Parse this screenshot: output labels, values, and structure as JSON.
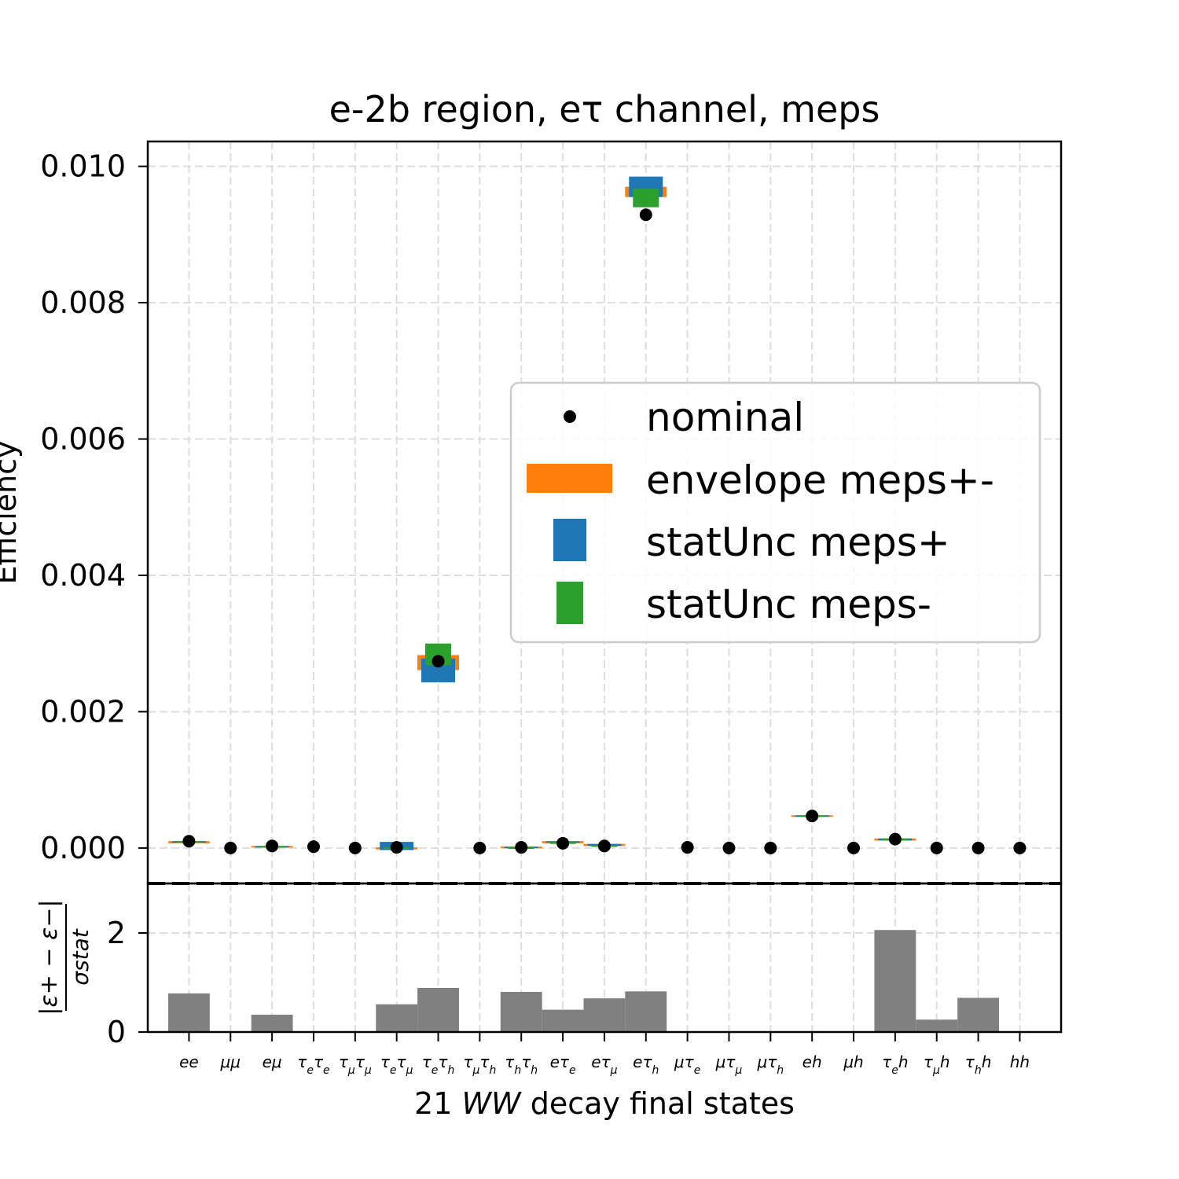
{
  "chart_data": [
    {
      "type": "scatter",
      "title": "e-2b region, eτ channel, meps",
      "ylabel": "Efficiency",
      "ylim": [
        -0.00052,
        0.010365
      ],
      "yticks": [
        0.0,
        0.002,
        0.004,
        0.006,
        0.008,
        0.01
      ],
      "ytick_labels": [
        "0.000",
        "0.002",
        "0.004",
        "0.006",
        "0.008",
        "0.010"
      ],
      "grid": true,
      "legend_position": "center-right",
      "colors": {
        "nominal": "#000000",
        "envelope": "#ff7f0e",
        "statUnc_plus": "#1f77b4",
        "statUnc_minus": "#2ca02c"
      },
      "categories": [
        "ee",
        "μμ",
        "eμ",
        "τeτe",
        "τμτμ",
        "τeτμ",
        "τeτh",
        "τμτh",
        "τhτh",
        "eτe",
        "eτμ",
        "eτh",
        "μτe",
        "μτμ",
        "μτh",
        "eh",
        "μh",
        "τeh",
        "τμh",
        "τhh",
        "hh"
      ],
      "category_labels": [
        {
          "base": "ee"
        },
        {
          "base": "μμ"
        },
        {
          "base": "eμ"
        },
        {
          "base": "τ",
          "sub": "e",
          "base2": "τ",
          "sub2": "e"
        },
        {
          "base": "τ",
          "sub": "μ",
          "base2": "τ",
          "sub2": "μ"
        },
        {
          "base": "τ",
          "sub": "e",
          "base2": "τ",
          "sub2": "μ"
        },
        {
          "base": "τ",
          "sub": "e",
          "base2": "τ",
          "sub2": "h"
        },
        {
          "base": "τ",
          "sub": "μ",
          "base2": "τ",
          "sub2": "h"
        },
        {
          "base": "τ",
          "sub": "h",
          "base2": "τ",
          "sub2": "h"
        },
        {
          "base": "eτ",
          "sub": "e"
        },
        {
          "base": "eτ",
          "sub": "μ"
        },
        {
          "base": "eτ",
          "sub": "h"
        },
        {
          "base": "μτ",
          "sub": "e"
        },
        {
          "base": "μτ",
          "sub": "μ"
        },
        {
          "base": "μτ",
          "sub": "h"
        },
        {
          "base": "eh"
        },
        {
          "base": "μh"
        },
        {
          "base": "τ",
          "sub": "e",
          "base2": "h"
        },
        {
          "base": "τ",
          "sub": "μ",
          "base2": "h"
        },
        {
          "base": "τ",
          "sub": "h",
          "base2": "h"
        },
        {
          "base": "hh"
        }
      ],
      "series": [
        {
          "name": "nominal",
          "values": [
            0.0001,
            0.0,
            3e-05,
            2e-05,
            0.0,
            1e-05,
            0.00274,
            0.0,
            1e-05,
            7e-05,
            3e-05,
            0.00929,
            1e-05,
            0.0,
            0.0,
            0.00047,
            0.0,
            0.00013,
            0.0,
            0.0,
            0.0
          ]
        },
        {
          "name": "envelope meps+-",
          "low": [
            7e-05,
            0.0,
            2e-05,
            0.0,
            0.0,
            -2e-05,
            0.00261,
            0.0,
            0.0,
            7e-05,
            3e-05,
            0.00955,
            0.0,
            0.0,
            0.0,
            0.00046,
            0.0,
            0.00011,
            0.0,
            0.0,
            0.0
          ],
          "high": [
            0.0001,
            0.0,
            3e-05,
            0.0,
            0.0,
            1e-05,
            0.00283,
            0.0,
            2e-05,
            0.0001,
            6e-05,
            0.0097,
            0.0,
            0.0,
            0.0,
            0.00048,
            0.0,
            0.00014,
            0.0,
            0.0,
            0.0
          ]
        },
        {
          "name": "statUnc meps+",
          "low": [
            8e-05,
            0.0,
            2e-05,
            0.0,
            0.0,
            -3e-05,
            0.00243,
            0.0,
            0.0,
            8e-05,
            3e-05,
            0.00955,
            0.0,
            0.0,
            0.0,
            0.00046,
            0.0,
            0.00011,
            0.0,
            0.0,
            0.0
          ],
          "high": [
            0.0001,
            0.0,
            3e-05,
            0.0,
            0.0,
            9e-05,
            0.00278,
            0.0,
            2e-05,
            0.0001,
            6e-05,
            0.00985,
            0.0,
            0.0,
            0.0,
            0.00048,
            0.0,
            0.00014,
            0.0,
            0.0,
            0.0
          ]
        },
        {
          "name": "statUnc meps-",
          "low": [
            8e-05,
            0.0,
            2e-05,
            0.0,
            0.0,
            -1e-05,
            0.00268,
            0.0,
            0.0,
            6e-05,
            2e-05,
            0.0094,
            0.0,
            0.0,
            0.0,
            0.00046,
            0.0,
            0.00011,
            0.0,
            0.0,
            0.0
          ],
          "high": [
            0.0001,
            0.0,
            3e-05,
            0.0,
            0.0,
            1e-05,
            0.003,
            0.0,
            1e-05,
            9e-05,
            4e-05,
            0.00967,
            0.0,
            0.0,
            0.0,
            0.00048,
            0.0,
            0.00014,
            0.0,
            0.0,
            0.0
          ]
        }
      ]
    },
    {
      "type": "bar",
      "ylabel_parts": {
        "numerator": "|ε+ − ε−|",
        "denominator": "σstat"
      },
      "ylim": [
        0,
        3.0
      ],
      "yticks": [
        0,
        2
      ],
      "ytick_labels": [
        "0",
        "2"
      ],
      "reference_line": 3.0,
      "xlabel": {
        "prefix": "21 ",
        "italic": "WW",
        "suffix": " decay final states"
      },
      "bar_color": "#808080",
      "categories": [
        "ee",
        "μμ",
        "eμ",
        "τeτe",
        "τμτμ",
        "τeτμ",
        "τeτh",
        "τμτh",
        "τhτh",
        "eτe",
        "eτμ",
        "eτh",
        "μτe",
        "μτμ",
        "μτh",
        "eh",
        "μh",
        "τeh",
        "τμh",
        "τhh",
        "hh"
      ],
      "values": [
        0.78,
        0.0,
        0.35,
        0.0,
        0.0,
        0.56,
        0.89,
        0.0,
        0.81,
        0.45,
        0.68,
        0.82,
        0.0,
        0.0,
        0.0,
        0.0,
        0.0,
        2.06,
        0.25,
        0.69,
        0.0
      ]
    }
  ]
}
